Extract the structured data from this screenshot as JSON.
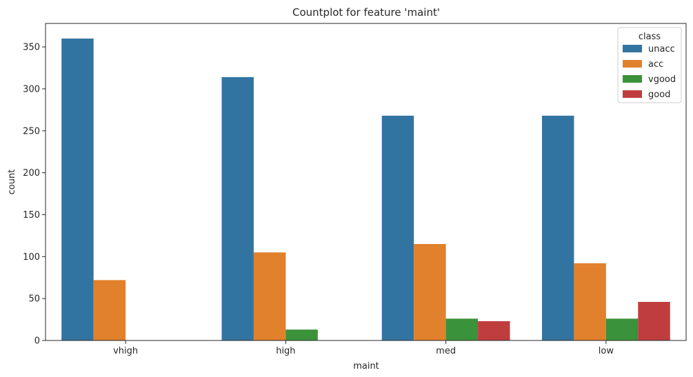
{
  "chart_data": {
    "type": "bar",
    "title": "Countplot for feature 'maint'",
    "xlabel": "maint",
    "ylabel": "count",
    "categories": [
      "vhigh",
      "high",
      "med",
      "low"
    ],
    "ylim": [
      0,
      378
    ],
    "yticks": [
      0,
      50,
      100,
      150,
      200,
      250,
      300,
      350
    ],
    "legend": {
      "title": "class",
      "position": "top-right"
    },
    "grid": false,
    "series": [
      {
        "name": "unacc",
        "color": "#3274a1",
        "values": [
          360,
          314,
          268,
          268
        ]
      },
      {
        "name": "acc",
        "color": "#e1812c",
        "values": [
          72,
          105,
          115,
          92
        ]
      },
      {
        "name": "vgood",
        "color": "#3a923a",
        "values": [
          0,
          13,
          26,
          26
        ]
      },
      {
        "name": "good",
        "color": "#c03d3e",
        "values": [
          0,
          0,
          23,
          46
        ]
      }
    ]
  }
}
